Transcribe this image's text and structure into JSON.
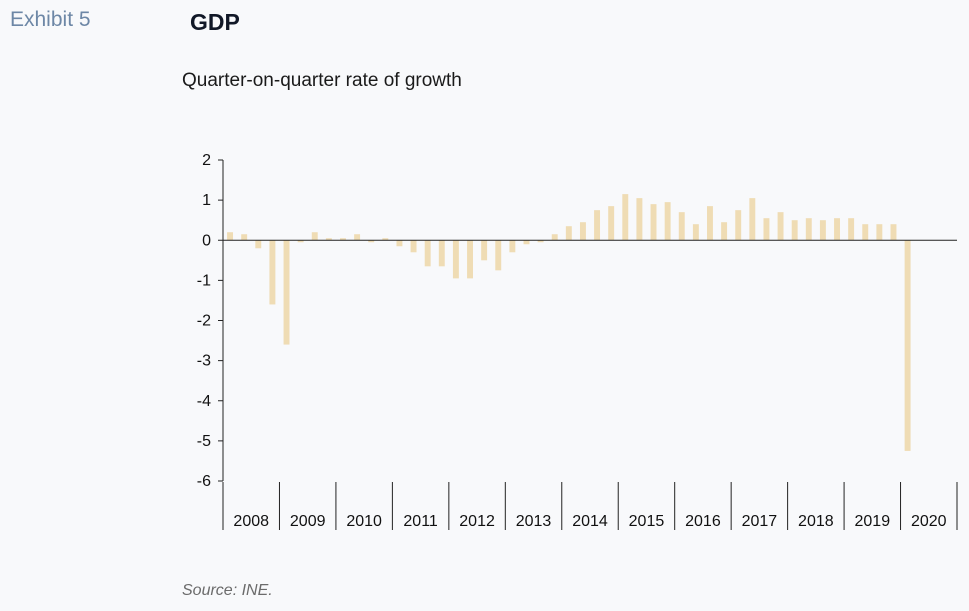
{
  "exhibit_label": "Exhibit 5",
  "title": "GDP",
  "subtitle": "Quarter-on-quarter rate of growth",
  "source": "Source: INE.",
  "colors": {
    "bar": "#efdcb4",
    "axis": "#222222",
    "background": "#f8f9fb"
  },
  "chart_data": {
    "type": "bar",
    "title": "GDP",
    "subtitle": "Quarter-on-quarter rate of growth",
    "xlabel": "",
    "ylabel": "",
    "ylim": [
      -6,
      2
    ],
    "yticks": [
      "2",
      "1",
      "0",
      "-1",
      "-2",
      "-3",
      "-4",
      "-5",
      "-6"
    ],
    "years": [
      "2008",
      "2009",
      "2010",
      "2011",
      "2012",
      "2013",
      "2014",
      "2015",
      "2016",
      "2017",
      "2018",
      "2019",
      "2020"
    ],
    "quarters_per_year": 4,
    "grid": false,
    "legend": "none",
    "values": [
      0.2,
      0.15,
      -0.2,
      -1.6,
      -2.6,
      -0.05,
      0.2,
      0.05,
      0.05,
      0.15,
      -0.05,
      0.05,
      -0.15,
      -0.3,
      -0.65,
      -0.65,
      -0.95,
      -0.95,
      -0.5,
      -0.75,
      -0.3,
      -0.1,
      -0.05,
      0.15,
      0.35,
      0.45,
      0.75,
      0.85,
      1.15,
      1.05,
      0.9,
      0.95,
      0.7,
      0.4,
      0.85,
      0.45,
      0.75,
      1.05,
      0.55,
      0.7,
      0.5,
      0.55,
      0.5,
      0.55,
      0.55,
      0.4,
      0.4,
      0.4,
      -5.25
    ]
  }
}
